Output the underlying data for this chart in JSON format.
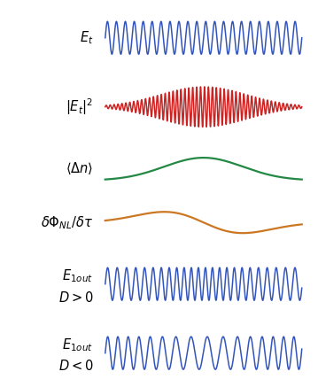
{
  "background_color": "#ffffff",
  "blue_color": "#3355bb",
  "red_color": "#cc2222",
  "green_color": "#228844",
  "orange_color": "#cc7722",
  "panels": [
    {
      "label_lines": [
        "$E_t$"
      ],
      "type": "sine_flat"
    },
    {
      "label_lines": [
        "$|E_t|^2$"
      ],
      "type": "sine_gauss"
    },
    {
      "label_lines": [
        "$\\langle\\Delta n\\rangle$"
      ],
      "type": "gauss_curve"
    },
    {
      "label_lines": [
        "$\\delta\\Phi_{NL}/\\delta\\tau$"
      ],
      "type": "deriv_gauss"
    },
    {
      "label_lines": [
        "$E_{1out}$",
        "$D>0$"
      ],
      "type": "chirp_pos"
    },
    {
      "label_lines": [
        "$E_{1out}$",
        "$D<0$"
      ],
      "type": "chirp_neg"
    }
  ],
  "label_fontsize": 10.5,
  "label_color": "#000000",
  "fig_width": 3.59,
  "fig_height": 4.37,
  "dpi": 100
}
